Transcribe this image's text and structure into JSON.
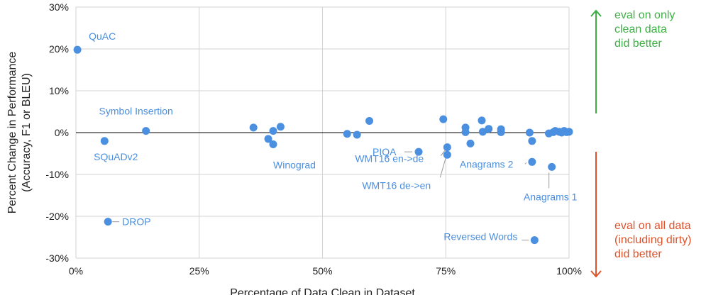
{
  "chart_data": {
    "type": "scatter",
    "xlabel": "Percentage of Data Clean in Dataset",
    "ylabel_lines": [
      "Percent Change in Performance",
      "(Accuracy, F1 or BLEU)"
    ],
    "xlim": [
      0,
      100
    ],
    "ylim": [
      -30,
      30
    ],
    "x_ticks": [
      0,
      25,
      50,
      75,
      100
    ],
    "x_tick_labels": [
      "0%",
      "25%",
      "50%",
      "75%",
      "100%"
    ],
    "y_ticks": [
      30,
      20,
      10,
      0,
      -10,
      -20,
      -30
    ],
    "y_tick_labels": [
      "30%",
      "20%",
      "10%",
      "0%",
      "-10%",
      "-20%",
      "-30%"
    ],
    "grid": true,
    "point_color": "#4a8fe0",
    "points": [
      {
        "x": 0.3,
        "y": 19.8,
        "label": "QuAC"
      },
      {
        "x": 14.2,
        "y": 0.4,
        "label": "Symbol Insertion"
      },
      {
        "x": 5.8,
        "y": -2.0,
        "label": "SQuADv2"
      },
      {
        "x": 6.5,
        "y": -21.3,
        "label": "DROP"
      },
      {
        "x": 36.0,
        "y": 1.2
      },
      {
        "x": 39.0,
        "y": -1.5
      },
      {
        "x": 40.0,
        "y": 0.4
      },
      {
        "x": 40.0,
        "y": -2.8,
        "label": "Winograd"
      },
      {
        "x": 41.5,
        "y": 1.4
      },
      {
        "x": 55.0,
        "y": -0.3
      },
      {
        "x": 57.0,
        "y": -0.5
      },
      {
        "x": 59.5,
        "y": 2.8
      },
      {
        "x": 69.5,
        "y": -4.6,
        "label": "PIQA"
      },
      {
        "x": 74.5,
        "y": 3.2
      },
      {
        "x": 75.3,
        "y": -3.5,
        "label": "WMT16 en->de"
      },
      {
        "x": 75.3,
        "y": -5.3,
        "label": "WMT16 de->en"
      },
      {
        "x": 79.0,
        "y": 1.2
      },
      {
        "x": 79.0,
        "y": 0.1
      },
      {
        "x": 80.0,
        "y": -2.6
      },
      {
        "x": 82.3,
        "y": 2.9
      },
      {
        "x": 82.5,
        "y": 0.2
      },
      {
        "x": 83.7,
        "y": 0.9
      },
      {
        "x": 86.2,
        "y": 0.8
      },
      {
        "x": 86.2,
        "y": 0.1
      },
      {
        "x": 92.0,
        "y": 0.0
      },
      {
        "x": 92.5,
        "y": -2.0
      },
      {
        "x": 92.5,
        "y": -7.0,
        "label": "Anagrams 2"
      },
      {
        "x": 93.0,
        "y": -25.7,
        "label": "Reversed Words"
      },
      {
        "x": 95.9,
        "y": -0.2
      },
      {
        "x": 96.8,
        "y": 0.1
      },
      {
        "x": 97.2,
        "y": 0.4
      },
      {
        "x": 98.0,
        "y": 0.2
      },
      {
        "x": 98.5,
        "y": 0.0
      },
      {
        "x": 99.0,
        "y": 0.4
      },
      {
        "x": 99.5,
        "y": 0.1
      },
      {
        "x": 100.0,
        "y": 0.2
      },
      {
        "x": 96.5,
        "y": -8.2,
        "label": "Anagrams 1"
      }
    ]
  },
  "side_notes": {
    "better_clean": [
      "eval on only",
      "clean data",
      "did better"
    ],
    "better_clean_color": "#3cb043",
    "better_all": [
      "eval on all data",
      "(including dirty)",
      "did better"
    ],
    "better_all_color": "#e0522a"
  }
}
